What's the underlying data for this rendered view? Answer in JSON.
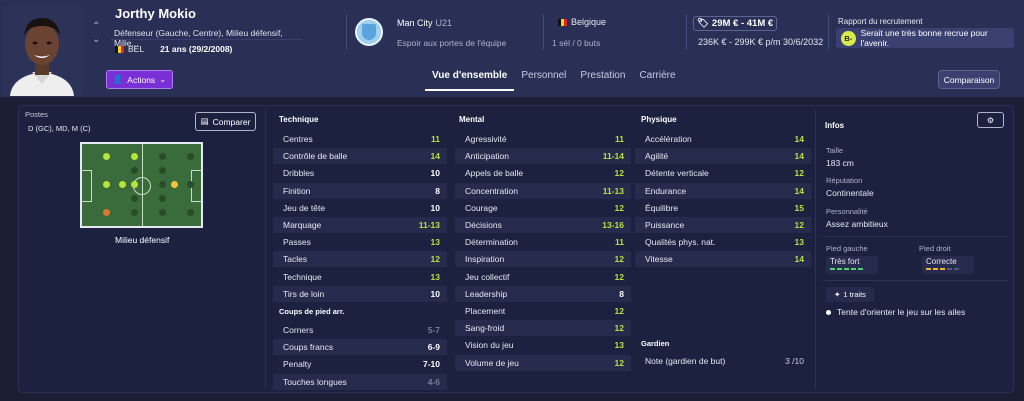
{
  "header": {
    "player_name": "Jorthy Mokio",
    "positions_text": "Défenseur (Gauche, Centre), Milieu défensif, Milie...",
    "nationality_code": "BEL",
    "age_text": "21 ans (29/2/2008)",
    "actions_label": "Actions",
    "club_name": "Man City",
    "club_team": "U21",
    "club_status": "Espoir aux portes de l'équipe",
    "country": "Belgique",
    "caps": "1 sél / 0 buts",
    "value": "29M € - 41M €",
    "wage": "236K € - 299K € p/m 30/6/2032",
    "report_title": "Rapport du recrutement",
    "report_grade": "B-",
    "report_text": "Serait une très bonne recrue pour l'avenir.",
    "comparaison_label": "Comparaison"
  },
  "tabs": [
    {
      "label": "Vue d'ensemble",
      "active": true
    },
    {
      "label": "Personnel",
      "active": false
    },
    {
      "label": "Prestation",
      "active": false
    },
    {
      "label": "Carrière",
      "active": false
    }
  ],
  "positions": {
    "label": "Postes",
    "value": "D (GC), MD, M (C)",
    "compare_label": "Comparer",
    "role": "Milieu défensif"
  },
  "colors": {
    "green": "#b7e33a",
    "yellow": "#f3c53a",
    "white": "#ffffff",
    "grey": "#7a7e92",
    "orange": "#e0762a",
    "dark_spot": "#2a4a2a",
    "foot_strong": "#4fd46b",
    "foot_ok": "#f0b429"
  },
  "technique": {
    "title": "Technique",
    "rows": [
      {
        "label": "Centres",
        "value": "11",
        "color": "#b7e33a"
      },
      {
        "label": "Contrôle de balle",
        "value": "14",
        "color": "#b7e33a"
      },
      {
        "label": "Dribbles",
        "value": "10",
        "color": "#ffffff"
      },
      {
        "label": "Finition",
        "value": "8",
        "color": "#ffffff"
      },
      {
        "label": "Jeu de tête",
        "value": "10",
        "color": "#ffffff"
      },
      {
        "label": "Marquage",
        "value": "11-13",
        "color": "#b7e33a"
      },
      {
        "label": "Passes",
        "value": "13",
        "color": "#b7e33a"
      },
      {
        "label": "Tacles",
        "value": "12",
        "color": "#b7e33a"
      },
      {
        "label": "Technique",
        "value": "13",
        "color": "#b7e33a"
      },
      {
        "label": "Tirs de loin",
        "value": "10",
        "color": "#ffffff"
      }
    ]
  },
  "set_pieces": {
    "title": "Coups de pied arr.",
    "rows": [
      {
        "label": "Corners",
        "value": "5-7",
        "color": "#7a7e92"
      },
      {
        "label": "Coups francs",
        "value": "6-9",
        "color": "#ffffff"
      },
      {
        "label": "Penalty",
        "value": "7-10",
        "color": "#ffffff"
      },
      {
        "label": "Touches longues",
        "value": "4-6",
        "color": "#7a7e92"
      }
    ]
  },
  "mental": {
    "title": "Mental",
    "rows": [
      {
        "label": "Agressivité",
        "value": "11",
        "color": "#b7e33a"
      },
      {
        "label": "Anticipation",
        "value": "11-14",
        "color": "#b7e33a"
      },
      {
        "label": "Appels de balle",
        "value": "12",
        "color": "#b7e33a"
      },
      {
        "label": "Concentration",
        "value": "11-13",
        "color": "#b7e33a"
      },
      {
        "label": "Courage",
        "value": "12",
        "color": "#b7e33a"
      },
      {
        "label": "Décisions",
        "value": "13-16",
        "color": "#b7e33a"
      },
      {
        "label": "Détermination",
        "value": "11",
        "color": "#b7e33a"
      },
      {
        "label": "Inspiration",
        "value": "12",
        "color": "#b7e33a"
      },
      {
        "label": "Jeu collectif",
        "value": "12",
        "color": "#b7e33a"
      },
      {
        "label": "Leadership",
        "value": "8",
        "color": "#ffffff"
      },
      {
        "label": "Placement",
        "value": "12",
        "color": "#b7e33a"
      },
      {
        "label": "Sang-froid",
        "value": "12",
        "color": "#b7e33a"
      },
      {
        "label": "Vision du jeu",
        "value": "13",
        "color": "#b7e33a"
      },
      {
        "label": "Volume de jeu",
        "value": "12",
        "color": "#b7e33a"
      }
    ]
  },
  "physique": {
    "title": "Physique",
    "rows": [
      {
        "label": "Accélération",
        "value": "14",
        "color": "#b7e33a"
      },
      {
        "label": "Agilité",
        "value": "14",
        "color": "#b7e33a"
      },
      {
        "label": "Détente verticale",
        "value": "12",
        "color": "#b7e33a"
      },
      {
        "label": "Endurance",
        "value": "14",
        "color": "#b7e33a"
      },
      {
        "label": "Équilibre",
        "value": "15",
        "color": "#b7e33a"
      },
      {
        "label": "Puissance",
        "value": "12",
        "color": "#b7e33a"
      },
      {
        "label": "Qualités phys. nat.",
        "value": "13",
        "color": "#b7e33a"
      },
      {
        "label": "Vitesse",
        "value": "14",
        "color": "#b7e33a"
      }
    ]
  },
  "goalkeeper": {
    "title": "Gardien",
    "label": "Note (gardien de but)",
    "value": "3 /10"
  },
  "infos": {
    "title": "Infos",
    "height_label": "Taille",
    "height_value": "183 cm",
    "reputation_label": "Réputation",
    "reputation_value": "Continentale",
    "personality_label": "Personnalité",
    "personality_value": "Assez ambitieux",
    "left_foot_label": "Pied gauche",
    "left_foot_value": "Très fort",
    "right_foot_label": "Pied droit",
    "right_foot_value": "Correcte",
    "traits_label": "1 traits",
    "trait_1": "Tente d'orienter le jeu sur les ailes"
  }
}
